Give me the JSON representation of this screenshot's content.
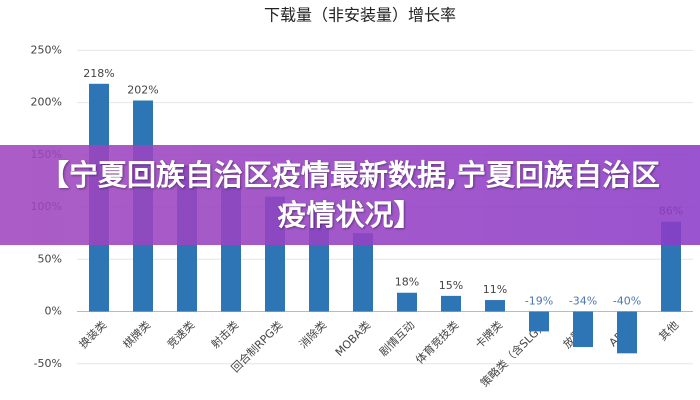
{
  "chart_data": {
    "type": "bar",
    "title": "下载量（非安装量）增长率",
    "categories": [
      "换装类",
      "棋牌类",
      "竞速类",
      "射击类",
      "回合制RPG类",
      "消除类",
      "MOBA类",
      "剧情互动",
      "体育竞技类",
      "卡牌类",
      "策略类（含SLG）",
      "放置类",
      "ARPG",
      "其他"
    ],
    "values": [
      218,
      202,
      140,
      120,
      110,
      100,
      75,
      18,
      15,
      11,
      -19,
      -34,
      -40,
      86
    ],
    "value_labels": [
      "218%",
      "202%",
      null,
      null,
      null,
      null,
      null,
      "18%",
      "15%",
      "11%",
      "-19%",
      "-34%",
      "-40%",
      "86%"
    ],
    "color": "#2e75b6",
    "ylim": [
      -55,
      258
    ],
    "yticks": [
      {
        "value": -50,
        "label": "-50%"
      },
      {
        "value": 0,
        "label": "0%"
      },
      {
        "value": 50,
        "label": "50%"
      },
      {
        "value": 100,
        "label": "100%"
      },
      {
        "value": 150,
        "label": "150%"
      },
      {
        "value": 200,
        "label": "200%"
      },
      {
        "value": 250,
        "label": "250%"
      }
    ],
    "grid": true
  },
  "banner": {
    "text": "【宁夏回族自治区疫情最新数据,宁夏回族自治区疫情状况】"
  }
}
